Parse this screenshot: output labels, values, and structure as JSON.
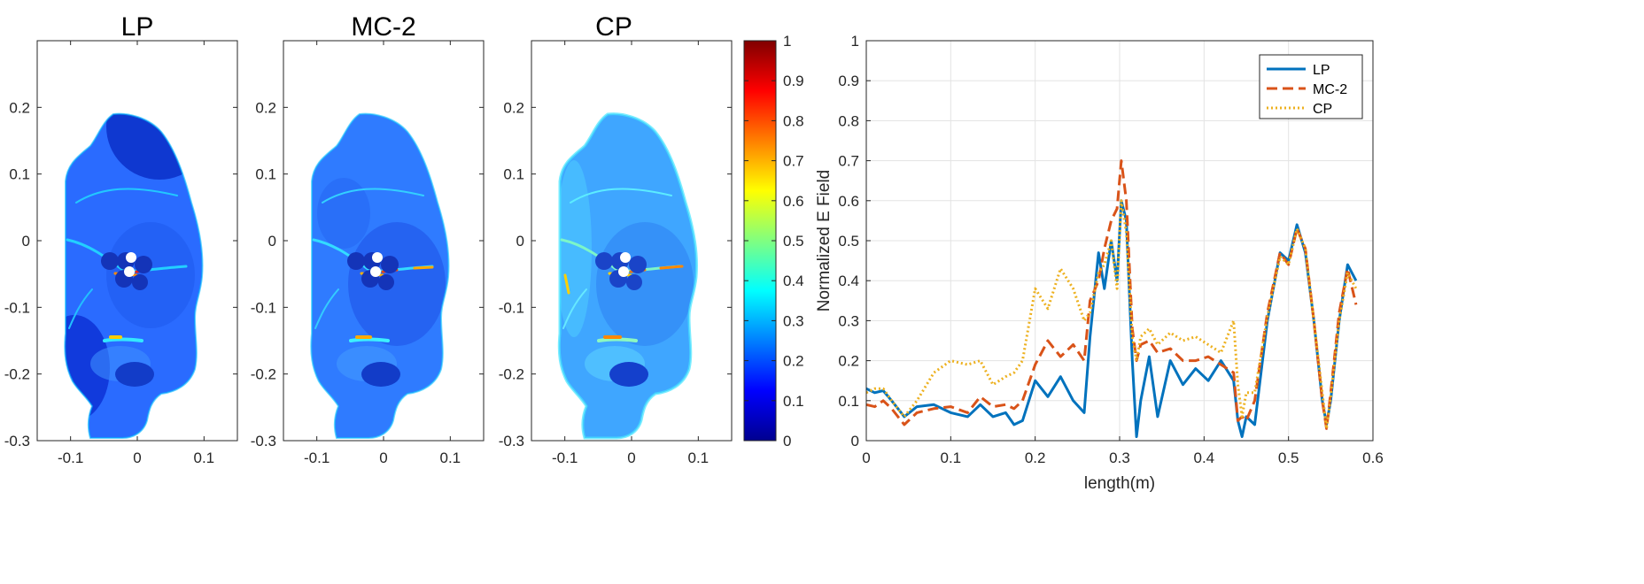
{
  "chart_data": [
    {
      "type": "heatmap",
      "title": "LP",
      "xticks": [
        "-0.1",
        "0",
        "0.1"
      ],
      "yticks": [
        "0.2",
        "0.1",
        "0",
        "-0.1",
        "-0.2",
        "-0.3"
      ],
      "xlim": [
        -0.15,
        0.15
      ],
      "ylim": [
        -0.3,
        0.3
      ]
    },
    {
      "type": "heatmap",
      "title": "MC-2",
      "xticks": [
        "-0.1",
        "0",
        "0.1"
      ],
      "yticks": [
        "0.2",
        "0.1",
        "0",
        "-0.1",
        "-0.2",
        "-0.3"
      ],
      "xlim": [
        -0.15,
        0.15
      ],
      "ylim": [
        -0.3,
        0.3
      ]
    },
    {
      "type": "heatmap",
      "title": "CP",
      "xticks": [
        "-0.1",
        "0",
        "0.1"
      ],
      "yticks": [
        "0.2",
        "0.1",
        "0",
        "-0.1",
        "-0.2",
        "-0.3"
      ],
      "xlim": [
        -0.15,
        0.15
      ],
      "ylim": [
        -0.3,
        0.3
      ],
      "colorbar": {
        "range": [
          0,
          1
        ],
        "ticks": [
          "1",
          "0.9",
          "0.8",
          "0.7",
          "0.6",
          "0.5",
          "0.4",
          "0.3",
          "0.2",
          "0.1",
          "0"
        ],
        "colormap": "jet"
      }
    },
    {
      "type": "line",
      "title": "",
      "xlabel": "length(m)",
      "ylabel": "Normalized E Field",
      "xlim": [
        0,
        0.6
      ],
      "ylim": [
        0,
        1
      ],
      "xticks": [
        "0",
        "0.1",
        "0.2",
        "0.3",
        "0.4",
        "0.5",
        "0.6"
      ],
      "yticks": [
        "0",
        "0.1",
        "0.2",
        "0.3",
        "0.4",
        "0.5",
        "0.6",
        "0.7",
        "0.8",
        "0.9",
        "1"
      ],
      "grid": true,
      "legend_position": "top-right",
      "series": [
        {
          "name": "LP",
          "color": "#0072BD",
          "style": "solid",
          "x": [
            0,
            0.01,
            0.02,
            0.03,
            0.045,
            0.06,
            0.08,
            0.1,
            0.12,
            0.135,
            0.15,
            0.165,
            0.175,
            0.185,
            0.2,
            0.215,
            0.23,
            0.245,
            0.258,
            0.265,
            0.275,
            0.282,
            0.29,
            0.297,
            0.302,
            0.308,
            0.315,
            0.32,
            0.325,
            0.335,
            0.345,
            0.36,
            0.375,
            0.39,
            0.405,
            0.42,
            0.435,
            0.44,
            0.445,
            0.45,
            0.46,
            0.475,
            0.49,
            0.5,
            0.51,
            0.52,
            0.53,
            0.54,
            0.545,
            0.55,
            0.56,
            0.57,
            0.58
          ],
          "y": [
            0.13,
            0.12,
            0.125,
            0.1,
            0.06,
            0.085,
            0.09,
            0.07,
            0.06,
            0.09,
            0.06,
            0.07,
            0.04,
            0.05,
            0.15,
            0.11,
            0.16,
            0.1,
            0.07,
            0.26,
            0.47,
            0.38,
            0.5,
            0.4,
            0.6,
            0.55,
            0.2,
            0.01,
            0.1,
            0.21,
            0.06,
            0.2,
            0.14,
            0.18,
            0.15,
            0.2,
            0.15,
            0.05,
            0.01,
            0.06,
            0.04,
            0.3,
            0.47,
            0.45,
            0.54,
            0.47,
            0.3,
            0.1,
            0.04,
            0.1,
            0.3,
            0.44,
            0.4
          ]
        },
        {
          "name": "MC-2",
          "color": "#D95319",
          "style": "dashed",
          "x": [
            0,
            0.01,
            0.02,
            0.03,
            0.045,
            0.06,
            0.08,
            0.1,
            0.12,
            0.135,
            0.15,
            0.165,
            0.175,
            0.185,
            0.2,
            0.215,
            0.23,
            0.245,
            0.258,
            0.265,
            0.275,
            0.282,
            0.29,
            0.297,
            0.302,
            0.308,
            0.315,
            0.32,
            0.325,
            0.335,
            0.345,
            0.36,
            0.375,
            0.39,
            0.405,
            0.42,
            0.435,
            0.44,
            0.445,
            0.45,
            0.46,
            0.475,
            0.49,
            0.5,
            0.51,
            0.52,
            0.53,
            0.54,
            0.545,
            0.55,
            0.56,
            0.57,
            0.58
          ],
          "y": [
            0.09,
            0.085,
            0.1,
            0.08,
            0.04,
            0.07,
            0.08,
            0.085,
            0.07,
            0.11,
            0.085,
            0.09,
            0.08,
            0.1,
            0.19,
            0.25,
            0.21,
            0.24,
            0.2,
            0.35,
            0.4,
            0.48,
            0.55,
            0.58,
            0.7,
            0.6,
            0.28,
            0.2,
            0.24,
            0.25,
            0.22,
            0.23,
            0.2,
            0.2,
            0.21,
            0.19,
            0.17,
            0.05,
            0.06,
            0.05,
            0.1,
            0.32,
            0.47,
            0.44,
            0.53,
            0.48,
            0.3,
            0.1,
            0.03,
            0.12,
            0.32,
            0.43,
            0.34
          ]
        },
        {
          "name": "CP",
          "color": "#EDB120",
          "style": "dotted",
          "x": [
            0,
            0.01,
            0.02,
            0.03,
            0.045,
            0.06,
            0.08,
            0.1,
            0.12,
            0.135,
            0.15,
            0.165,
            0.175,
            0.185,
            0.2,
            0.215,
            0.23,
            0.245,
            0.258,
            0.265,
            0.275,
            0.282,
            0.29,
            0.297,
            0.302,
            0.308,
            0.315,
            0.32,
            0.325,
            0.335,
            0.345,
            0.36,
            0.375,
            0.39,
            0.405,
            0.42,
            0.435,
            0.44,
            0.445,
            0.45,
            0.46,
            0.475,
            0.49,
            0.5,
            0.51,
            0.52,
            0.53,
            0.54,
            0.545,
            0.55,
            0.56,
            0.57,
            0.58
          ],
          "y": [
            0.12,
            0.13,
            0.13,
            0.1,
            0.06,
            0.1,
            0.17,
            0.2,
            0.19,
            0.2,
            0.14,
            0.16,
            0.17,
            0.2,
            0.38,
            0.33,
            0.43,
            0.38,
            0.3,
            0.32,
            0.42,
            0.44,
            0.5,
            0.38,
            0.6,
            0.52,
            0.26,
            0.2,
            0.26,
            0.28,
            0.24,
            0.27,
            0.25,
            0.26,
            0.24,
            0.22,
            0.3,
            0.14,
            0.06,
            0.12,
            0.12,
            0.31,
            0.46,
            0.44,
            0.53,
            0.48,
            0.3,
            0.12,
            0.03,
            0.11,
            0.3,
            0.42,
            0.38
          ]
        }
      ]
    }
  ]
}
